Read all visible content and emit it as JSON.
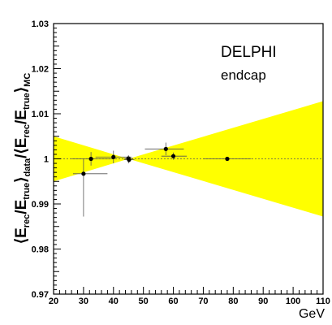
{
  "chart_data": {
    "type": "scatter",
    "title": "",
    "xlabel": "GeV",
    "ylabel": {
      "left_bracket": "⟨",
      "E1": "E",
      "rec1": "rec",
      "slash1": "/E",
      "true1": "true",
      "close1": "⟩",
      "data": "data",
      "mid": "/⟨",
      "E2": "E",
      "rec2": "rec",
      "slash2": "/E",
      "true2": "true",
      "close2": "⟩",
      "mc": "MC"
    },
    "xlim": [
      20,
      110
    ],
    "ylim": [
      0.97,
      1.03
    ],
    "x_ticks": [
      20,
      30,
      40,
      50,
      60,
      70,
      80,
      90,
      100,
      110
    ],
    "y_ticks": [
      0.97,
      0.98,
      0.99,
      1.0,
      1.01,
      1.02,
      1.03
    ],
    "y_tick_labels": [
      "0.97",
      "0.98",
      "0.99",
      "1",
      "1.01",
      "1.02",
      "1.03"
    ],
    "reference_line": 1.0,
    "band": {
      "color": "#ffff00",
      "pivot_x": 45,
      "pivot_y": 1.0,
      "left_x": 20,
      "left_upper": 1.005,
      "left_lower": 0.995,
      "right_x": 110,
      "right_upper": 1.0128,
      "right_lower": 0.9872
    },
    "annotations": [
      "DELPHI",
      "endcap"
    ],
    "points": [
      {
        "x": 30.0,
        "y": 0.9967,
        "xerr_low": 26.5,
        "xerr_high": 38.0,
        "yerr_low": 0.9872,
        "yerr_high": 1.0
      },
      {
        "x": 32.5,
        "y": 1.0,
        "xerr_low": 26.0,
        "xerr_high": 40.0,
        "yerr_low": 0.9985,
        "yerr_high": 1.0015
      },
      {
        "x": 40.0,
        "y": 1.0004,
        "xerr_low": 34.0,
        "xerr_high": 46.0,
        "yerr_low": 0.999,
        "yerr_high": 1.0018
      },
      {
        "x": 45.0,
        "y": 1.0001,
        "xerr_low": 43.5,
        "xerr_high": 46.5,
        "yerr_low": 0.999,
        "yerr_high": 1.0008
      },
      {
        "x": 45.2,
        "y": 0.9998,
        "xerr_low": 43.5,
        "xerr_high": 47.0,
        "yerr_low": 0.9992,
        "yerr_high": 1.0004
      },
      {
        "x": 57.5,
        "y": 1.0022,
        "xerr_low": 50.5,
        "xerr_high": 63.5,
        "yerr_low": 1.0008,
        "yerr_high": 1.0036
      },
      {
        "x": 60.0,
        "y": 1.0006,
        "xerr_low": 56.0,
        "xerr_high": 64.5,
        "yerr_low": 0.9998,
        "yerr_high": 1.0014
      },
      {
        "x": 78.0,
        "y": 1.0,
        "xerr_low": 70.0,
        "xerr_high": 86.0,
        "yerr_low": 0.9996,
        "yerr_high": 1.0004
      }
    ]
  }
}
